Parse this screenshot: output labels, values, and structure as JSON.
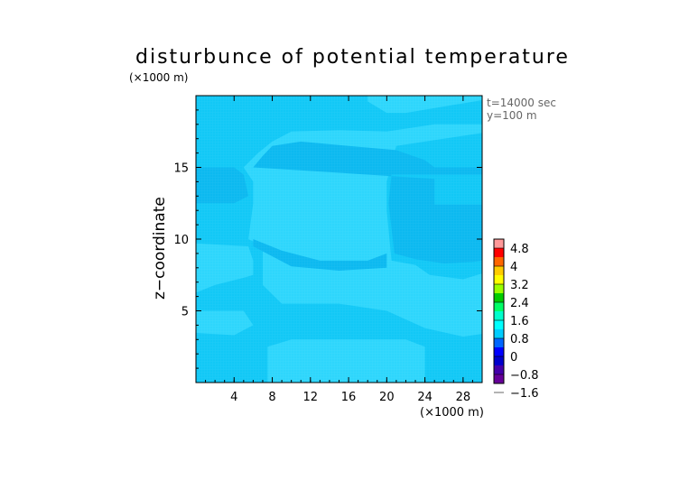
{
  "chart_data": {
    "type": "heatmap",
    "title": "disturbunce of potential temperature",
    "ylabel": "z−coordinate",
    "x_unit": "(×1000 m)",
    "y_unit": "(×1000 m)",
    "annotations": [
      "t=14000 sec",
      "y=100 m"
    ],
    "xlim": [
      0,
      30
    ],
    "ylim": [
      0,
      20
    ],
    "xticks": [
      4,
      8,
      12,
      16,
      20,
      24,
      28
    ],
    "yticks": [
      5,
      10,
      15
    ],
    "colorbar": {
      "labels": [
        "4.8",
        "4",
        "3.2",
        "2.4",
        "1.6",
        "0.8",
        "0",
        "−0.8",
        "−1.6"
      ],
      "colors_top_to_bottom": [
        "#ff9999",
        "#ff0000",
        "#ff6600",
        "#ffcc00",
        "#ffff00",
        "#99ff00",
        "#00cc00",
        "#00ff66",
        "#00ffcc",
        "#00ffff",
        "#00ccff",
        "#0066ff",
        "#0000ff",
        "#0000cc",
        "#4400aa",
        "#660099"
      ]
    },
    "field": {
      "background_color": "#12c8f6",
      "light_region_color": "#2ed6fc",
      "dark_region_color": "#0cb9f0",
      "light_regions": [
        [
          [
            7.5,
            0
          ],
          [
            7.5,
            2.5
          ],
          [
            10,
            3
          ],
          [
            22,
            3
          ],
          [
            24,
            2.5
          ],
          [
            24,
            0
          ]
        ],
        [
          [
            -1,
            6
          ],
          [
            2,
            6.8
          ],
          [
            5,
            7.3
          ],
          [
            6,
            7.5
          ],
          [
            6,
            8.5
          ],
          [
            5.5,
            9.5
          ],
          [
            0,
            9.7
          ],
          [
            -1,
            9.7
          ]
        ],
        [
          [
            -1,
            3.5
          ],
          [
            4,
            3.3
          ],
          [
            6,
            4
          ],
          [
            5,
            5
          ],
          [
            -1,
            5
          ]
        ],
        [
          [
            5.5,
            10
          ],
          [
            6,
            12.5
          ],
          [
            6,
            14
          ],
          [
            5,
            15
          ],
          [
            6.5,
            16
          ],
          [
            8,
            16.8
          ],
          [
            10,
            17.5
          ],
          [
            15,
            17.6
          ],
          [
            20,
            17.5
          ],
          [
            23,
            17.8
          ],
          [
            25,
            18
          ],
          [
            31,
            18
          ],
          [
            31,
            17.5
          ],
          [
            24,
            16.8
          ],
          [
            21,
            16.5
          ],
          [
            20,
            14
          ],
          [
            20,
            12
          ],
          [
            20.5,
            8.5
          ],
          [
            23,
            8.2
          ],
          [
            24.5,
            7.5
          ],
          [
            28,
            7.2
          ],
          [
            31,
            7.8
          ],
          [
            31,
            3.5
          ],
          [
            28,
            3.2
          ],
          [
            24,
            3.8
          ],
          [
            20,
            5
          ],
          [
            15,
            5.5
          ],
          [
            9,
            5.5
          ],
          [
            7,
            6.8
          ],
          [
            7,
            9.5
          ]
        ],
        [
          [
            18,
            19.6
          ],
          [
            20,
            18.8
          ],
          [
            22,
            18.8
          ],
          [
            31,
            19.8
          ],
          [
            31,
            21
          ],
          [
            18,
            21
          ]
        ]
      ],
      "dark_regions": [
        [
          [
            6,
            15
          ],
          [
            7,
            15.8
          ],
          [
            8,
            16.5
          ],
          [
            11,
            16.8
          ],
          [
            16,
            16.5
          ],
          [
            21,
            16.2
          ],
          [
            24,
            15.5
          ],
          [
            25,
            15
          ],
          [
            31,
            15
          ],
          [
            31,
            14.5
          ],
          [
            20.5,
            14.5
          ],
          [
            20.2,
            12.5
          ],
          [
            20.8,
            9
          ],
          [
            23,
            8.6
          ],
          [
            26,
            8.3
          ],
          [
            29,
            8.4
          ],
          [
            31,
            8.6
          ],
          [
            31,
            12.4
          ],
          [
            25,
            12.4
          ],
          [
            25,
            14.2
          ]
        ],
        [
          [
            -1,
            12.5
          ],
          [
            4,
            12.5
          ],
          [
            5.5,
            13
          ],
          [
            5,
            14.5
          ],
          [
            4,
            15
          ],
          [
            -1,
            15
          ]
        ],
        [
          [
            6,
            10
          ],
          [
            9,
            9.2
          ],
          [
            13,
            8.5
          ],
          [
            18,
            8.5
          ],
          [
            20,
            9
          ],
          [
            20,
            8
          ],
          [
            15,
            7.8
          ],
          [
            10,
            8.1
          ],
          [
            6,
            9.5
          ]
        ]
      ]
    }
  }
}
